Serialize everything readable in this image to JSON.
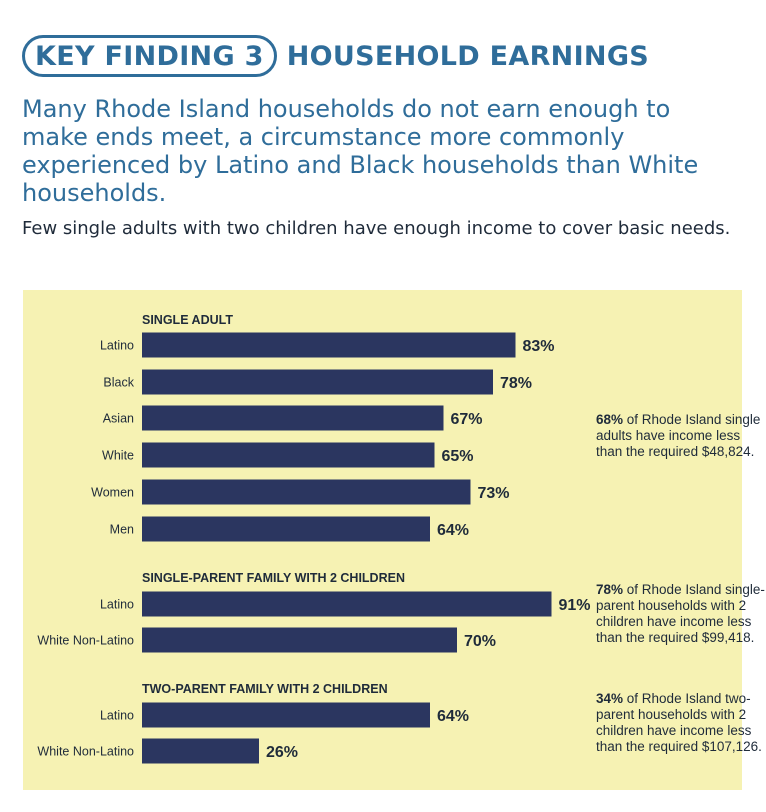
{
  "header": {
    "badge": "KEY FINDING 3",
    "title": "HOUSEHOLD EARNINGS",
    "lede": "Many Rhode Island households do not earn enough to make ends meet, a circumstance more commonly experienced by Latino and Black households than White households.",
    "subheading": "Few single adults with two children have enough income to cover basic needs."
  },
  "colors": {
    "bar": "#2b3660",
    "panel": "#f6f2b3",
    "accent": "#2f6d9a"
  },
  "notes": [
    {
      "percent": "68%",
      "text": " of Rhode Island single adults have income less than the required $48,824."
    },
    {
      "percent": "78%",
      "text": " of Rhode Island single-parent households with 2 children have income less than the required $99,418."
    },
    {
      "percent": "34%",
      "text": " of Rhode Island two-parent households with 2 children have income less than the required $107,126."
    }
  ],
  "chart_data": {
    "type": "bar",
    "orientation": "horizontal",
    "unit": "%",
    "xlim": [
      0,
      100
    ],
    "groups": [
      {
        "title": "SINGLE ADULT",
        "categories": [
          "Latino",
          "Black",
          "Asian",
          "White",
          "Women",
          "Men"
        ],
        "values": [
          83,
          78,
          67,
          65,
          73,
          64
        ],
        "labels": [
          "83%",
          "78%",
          "67%",
          "65%",
          "73%",
          "64%"
        ]
      },
      {
        "title": "SINGLE-PARENT FAMILY WITH 2 CHILDREN",
        "categories": [
          "Latino",
          "White Non-Latino"
        ],
        "values": [
          91,
          70
        ],
        "labels": [
          "91%",
          "70%"
        ]
      },
      {
        "title": "TWO-PARENT FAMILY WITH 2 CHILDREN",
        "categories": [
          "Latino",
          "White Non-Latino"
        ],
        "values": [
          64,
          26
        ],
        "labels": [
          "64%",
          "26%"
        ]
      }
    ]
  }
}
